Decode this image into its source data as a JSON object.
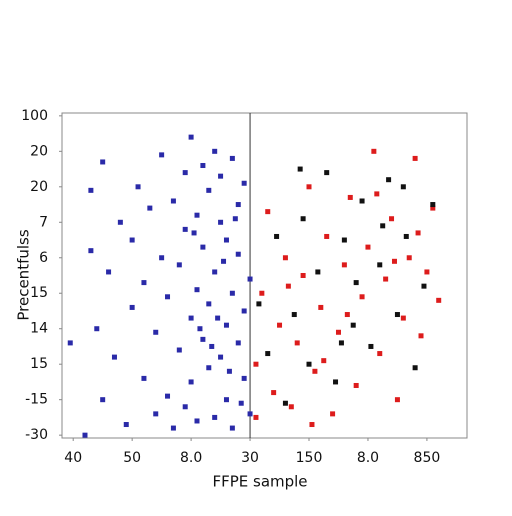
{
  "chart_data": {
    "type": "scatter",
    "xlabel": "FFPE sample",
    "ylabel": "Precentfulss",
    "xlim": [
      -0.19,
      6.68
    ],
    "ylim": [
      -0.08,
      9.08
    ],
    "xticks": [
      {
        "value": 0,
        "label": "40"
      },
      {
        "value": 1,
        "label": "50"
      },
      {
        "value": 2,
        "label": "8.0"
      },
      {
        "value": 3,
        "label": "30"
      },
      {
        "value": 4,
        "label": "150"
      },
      {
        "value": 5,
        "label": "8.0"
      },
      {
        "value": 6,
        "label": "850"
      }
    ],
    "yticks": [
      {
        "value": 9,
        "label": "100"
      },
      {
        "value": 8,
        "label": "20"
      },
      {
        "value": 7,
        "label": "20"
      },
      {
        "value": 6,
        "label": "7"
      },
      {
        "value": 5,
        "label": "6"
      },
      {
        "value": 4,
        "label": "15"
      },
      {
        "value": 3,
        "label": "14"
      },
      {
        "value": 2,
        "label": "15"
      },
      {
        "value": 1,
        "label": "-15"
      },
      {
        "value": 0,
        "label": "-30"
      }
    ],
    "series": [
      {
        "color": "#2a2aa8",
        "x": [
          -0.05,
          0.2,
          0.3,
          0.3,
          0.4,
          0.5,
          0.5,
          0.6,
          0.7,
          0.8,
          0.9,
          1.0,
          1.0,
          1.1,
          1.2,
          1.2,
          1.3,
          1.4,
          1.4,
          1.5,
          1.5,
          1.6,
          1.6,
          1.7,
          1.7,
          1.8,
          1.8,
          1.9,
          1.9,
          1.9,
          2.0,
          2.0,
          2.0,
          2.1,
          2.1,
          2.1,
          2.2,
          2.2,
          2.2,
          2.3,
          2.3,
          2.3,
          2.4,
          2.4,
          2.4,
          2.5,
          2.5,
          2.5,
          2.6,
          2.6,
          2.6,
          2.7,
          2.7,
          2.7,
          2.8,
          2.8,
          2.8,
          2.9,
          2.9,
          2.9,
          3.0,
          3.0,
          2.45,
          2.55,
          2.35,
          2.65,
          2.15,
          2.05,
          2.75,
          2.85
        ],
        "values": [
          2.6,
          0,
          6.9,
          5.2,
          3.0,
          7.7,
          1.0,
          4.6,
          2.2,
          6.0,
          0.3,
          5.5,
          3.6,
          7.0,
          1.6,
          4.3,
          6.4,
          0.6,
          2.9,
          7.9,
          5.0,
          3.9,
          1.1,
          6.6,
          0.2,
          4.8,
          2.4,
          7.4,
          0.8,
          5.8,
          3.3,
          8.4,
          1.5,
          6.2,
          4.1,
          0.4,
          7.6,
          2.7,
          5.3,
          1.9,
          6.9,
          3.7,
          8.0,
          0.5,
          4.6,
          2.2,
          6.0,
          7.3,
          3.1,
          1.0,
          5.5,
          7.8,
          4.0,
          0.2,
          6.5,
          2.6,
          5.1,
          1.6,
          7.1,
          3.5,
          0.6,
          4.4,
          3.3,
          4.9,
          2.5,
          1.8,
          3.0,
          5.7,
          6.1,
          0.9
        ]
      },
      {
        "color": "#dd1c1c",
        "x": [
          3.1,
          3.1,
          3.2,
          3.3,
          3.4,
          3.5,
          3.6,
          3.7,
          3.8,
          3.9,
          4.0,
          4.1,
          4.2,
          4.3,
          4.4,
          4.5,
          4.6,
          4.7,
          4.8,
          4.9,
          5.0,
          5.1,
          5.2,
          5.3,
          5.4,
          5.5,
          5.6,
          5.7,
          5.8,
          5.9,
          6.0,
          6.1,
          6.2,
          4.25,
          4.65,
          5.15,
          3.65,
          5.45,
          4.05,
          5.85
        ],
        "values": [
          2.0,
          0.5,
          4.0,
          6.3,
          1.2,
          3.1,
          5.0,
          0.8,
          2.6,
          4.5,
          7.0,
          1.8,
          3.6,
          5.6,
          0.6,
          2.9,
          4.8,
          6.7,
          1.4,
          3.9,
          5.3,
          8.0,
          2.3,
          4.4,
          6.1,
          1.0,
          3.3,
          5.0,
          7.8,
          2.8,
          4.6,
          6.4,
          3.8,
          2.1,
          3.4,
          6.8,
          4.2,
          4.9,
          0.3,
          5.7
        ]
      },
      {
        "color": "#111111",
        "x": [
          3.15,
          3.3,
          3.45,
          3.6,
          3.75,
          3.9,
          4.0,
          4.15,
          4.3,
          4.45,
          4.6,
          4.75,
          4.9,
          5.05,
          5.2,
          5.35,
          5.5,
          5.65,
          5.8,
          5.95,
          6.1,
          4.55,
          5.25,
          3.85,
          4.8,
          5.6
        ],
        "values": [
          3.7,
          2.3,
          5.6,
          0.9,
          3.4,
          6.1,
          2.0,
          4.6,
          7.4,
          1.5,
          5.5,
          3.1,
          6.6,
          2.5,
          4.8,
          7.2,
          3.4,
          5.6,
          1.9,
          4.2,
          6.5,
          2.6,
          5.9,
          7.5,
          4.3,
          7.0
        ]
      }
    ]
  }
}
